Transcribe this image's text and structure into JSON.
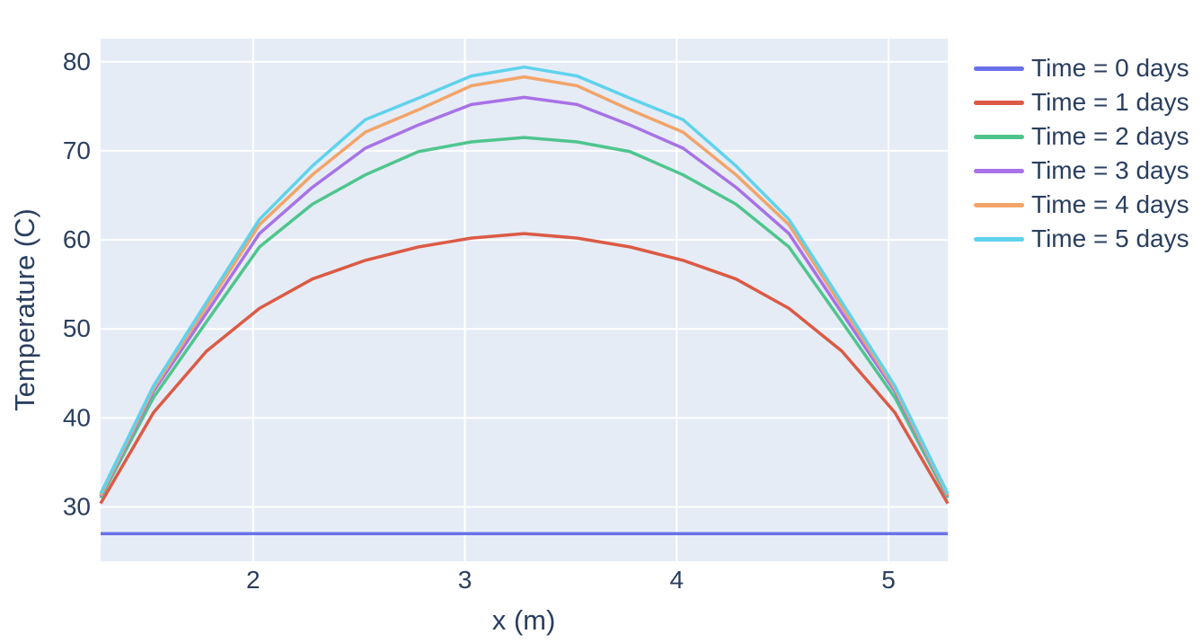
{
  "figure": {
    "background": "#FFFFFF"
  },
  "chart_data": {
    "type": "line",
    "title": "",
    "xlabel": "x (m)",
    "ylabel": "Temperature (C)",
    "x_range": [
      1.28,
      5.28
    ],
    "y_range": [
      23.9,
      82.6
    ],
    "xticks": [
      2,
      3,
      4,
      5
    ],
    "yticks": [
      30,
      40,
      50,
      60,
      70,
      80
    ],
    "grid": true,
    "legend_position": "right",
    "plot_bgcolor": "#E5ECF6",
    "grid_color": "#FFFFFF",
    "text_color": "#2A3F5F",
    "x": [
      1.28,
      1.53,
      1.78,
      2.03,
      2.28,
      2.53,
      2.78,
      3.03,
      3.28,
      3.53,
      3.78,
      4.03,
      4.28,
      4.53,
      4.78,
      5.03,
      5.28
    ],
    "series": [
      {
        "name": "Time = 0 days",
        "color": "#6A71E8",
        "values": [
          27,
          27,
          27,
          27,
          27,
          27,
          27,
          27,
          27,
          27,
          27,
          27,
          27,
          27,
          27,
          27,
          27
        ]
      },
      {
        "name": "Time = 1 days",
        "color": "#DC5A45",
        "values": [
          30.4,
          40.6,
          47.5,
          52.3,
          55.6,
          57.7,
          59.2,
          60.2,
          60.7,
          60.2,
          59.2,
          57.7,
          55.6,
          52.3,
          47.5,
          40.6,
          30.4
        ]
      },
      {
        "name": "Time = 2 days",
        "color": "#4FC58D",
        "values": [
          31.0,
          42.3,
          50.8,
          59.2,
          64.0,
          67.3,
          69.9,
          71.0,
          71.5,
          71.0,
          69.9,
          67.3,
          64.0,
          59.2,
          50.8,
          42.3,
          31.0
        ]
      },
      {
        "name": "Time = 3 days",
        "color": "#A872E6",
        "values": [
          31.2,
          43.0,
          51.8,
          60.7,
          65.9,
          70.3,
          72.9,
          75.2,
          76.0,
          75.2,
          72.9,
          70.3,
          65.9,
          60.7,
          51.8,
          43.0,
          31.2
        ]
      },
      {
        "name": "Time = 4 days",
        "color": "#F2A469",
        "values": [
          31.3,
          43.3,
          52.5,
          61.7,
          67.3,
          72.1,
          74.6,
          77.3,
          78.3,
          77.3,
          74.6,
          72.1,
          67.3,
          61.7,
          52.5,
          43.3,
          31.3
        ]
      },
      {
        "name": "Time = 5 days",
        "color": "#5FD2EC",
        "values": [
          31.5,
          43.6,
          53.0,
          62.3,
          68.3,
          73.5,
          75.9,
          78.4,
          79.4,
          78.4,
          75.9,
          73.5,
          68.3,
          62.3,
          53.0,
          43.6,
          31.5
        ]
      }
    ]
  }
}
